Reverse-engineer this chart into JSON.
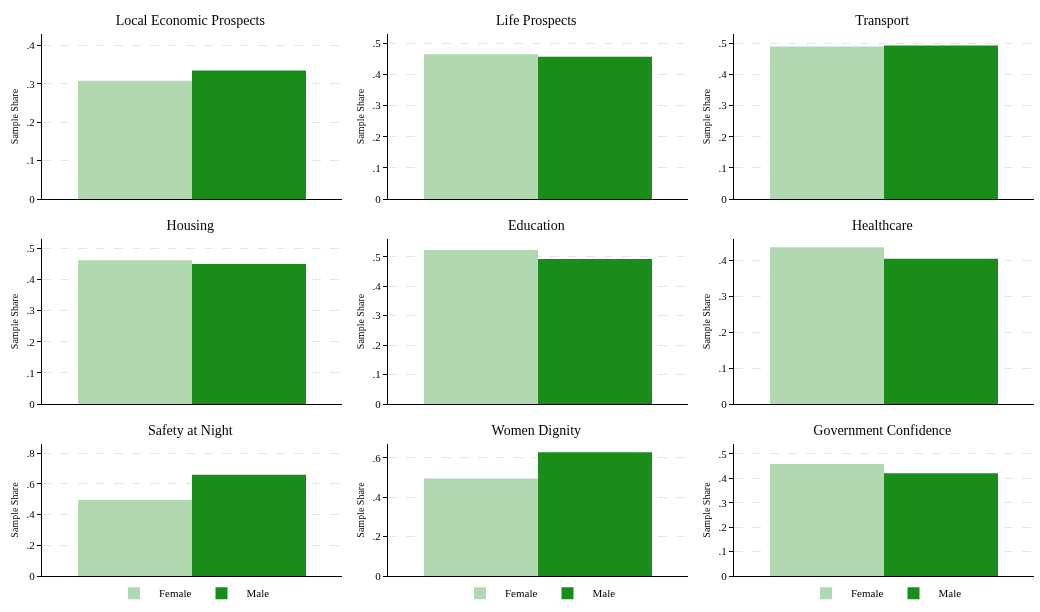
{
  "chart_data": [
    {
      "type": "bar",
      "title": "Local Economic Prospects",
      "ylabel": "Sample Share",
      "categories": [
        null
      ],
      "series": [
        {
          "color": "#b2d8b2",
          "values": [
            0.308
          ]
        },
        {
          "color": "#1a8c1a",
          "values": [
            0.335
          ]
        }
      ],
      "ylim": [
        0,
        0.43
      ],
      "yticks": [
        {
          "value": 0,
          "label": "0"
        },
        {
          "value": 0.1,
          "label": ".1"
        },
        {
          "value": 0.2,
          "label": ".2"
        },
        {
          "value": 0.3,
          "label": ".3"
        },
        {
          "value": 0.4,
          "label": ".4"
        }
      ],
      "grid": "y",
      "legend": false
    },
    {
      "type": "bar",
      "title": "Life Prospects",
      "ylabel": "Sample Share",
      "categories": [
        null
      ],
      "series": [
        {
          "color": "#b2d8b2",
          "values": [
            0.465
          ]
        },
        {
          "color": "#1a8c1a",
          "values": [
            0.457
          ]
        }
      ],
      "ylim": [
        0,
        0.53
      ],
      "yticks": [
        {
          "value": 0,
          "label": "0"
        },
        {
          "value": 0.1,
          "label": ".1"
        },
        {
          "value": 0.2,
          "label": ".2"
        },
        {
          "value": 0.3,
          "label": ".3"
        },
        {
          "value": 0.4,
          "label": ".4"
        },
        {
          "value": 0.5,
          "label": ".5"
        }
      ],
      "grid": "y",
      "legend": false
    },
    {
      "type": "bar",
      "title": "Transport",
      "ylabel": "Sample Share",
      "categories": [
        null
      ],
      "series": [
        {
          "color": "#b2d8b2",
          "values": [
            0.49
          ]
        },
        {
          "color": "#1a8c1a",
          "values": [
            0.493
          ]
        }
      ],
      "ylim": [
        0,
        0.53
      ],
      "yticks": [
        {
          "value": 0,
          "label": "0"
        },
        {
          "value": 0.1,
          "label": ".1"
        },
        {
          "value": 0.2,
          "label": ".2"
        },
        {
          "value": 0.3,
          "label": ".3"
        },
        {
          "value": 0.4,
          "label": ".4"
        },
        {
          "value": 0.5,
          "label": ".5"
        }
      ],
      "grid": "y",
      "legend": false
    },
    {
      "type": "bar",
      "title": "Housing",
      "ylabel": "Sample Share",
      "categories": [
        null
      ],
      "series": [
        {
          "color": "#b2d8b2",
          "values": [
            0.462
          ]
        },
        {
          "color": "#1a8c1a",
          "values": [
            0.45
          ]
        }
      ],
      "ylim": [
        0,
        0.53
      ],
      "yticks": [
        {
          "value": 0,
          "label": "0"
        },
        {
          "value": 0.1,
          "label": ".1"
        },
        {
          "value": 0.2,
          "label": ".2"
        },
        {
          "value": 0.3,
          "label": ".3"
        },
        {
          "value": 0.4,
          "label": ".4"
        },
        {
          "value": 0.5,
          "label": ".5"
        }
      ],
      "grid": "y",
      "legend": false
    },
    {
      "type": "bar",
      "title": "Education",
      "ylabel": "Sample Share",
      "categories": [
        null
      ],
      "series": [
        {
          "color": "#b2d8b2",
          "values": [
            0.523
          ]
        },
        {
          "color": "#1a8c1a",
          "values": [
            0.492
          ]
        }
      ],
      "ylim": [
        0,
        0.56
      ],
      "yticks": [
        {
          "value": 0,
          "label": "0"
        },
        {
          "value": 0.1,
          "label": ".1"
        },
        {
          "value": 0.2,
          "label": ".2"
        },
        {
          "value": 0.3,
          "label": ".3"
        },
        {
          "value": 0.4,
          "label": ".4"
        },
        {
          "value": 0.5,
          "label": ".5"
        }
      ],
      "grid": "y",
      "legend": false
    },
    {
      "type": "bar",
      "title": "Healthcare",
      "ylabel": "Sample Share",
      "categories": [
        null
      ],
      "series": [
        {
          "color": "#b2d8b2",
          "values": [
            0.437
          ]
        },
        {
          "color": "#1a8c1a",
          "values": [
            0.405
          ]
        }
      ],
      "ylim": [
        0,
        0.46
      ],
      "yticks": [
        {
          "value": 0,
          "label": "0"
        },
        {
          "value": 0.1,
          "label": ".1"
        },
        {
          "value": 0.2,
          "label": ".2"
        },
        {
          "value": 0.3,
          "label": ".3"
        },
        {
          "value": 0.4,
          "label": ".4"
        }
      ],
      "grid": "y",
      "legend": false
    },
    {
      "type": "bar",
      "title": "Safety at Night",
      "ylabel": "Sample Share",
      "categories": [
        null
      ],
      "series": [
        {
          "name": "Female",
          "color": "#b2d8b2",
          "values": [
            0.495
          ]
        },
        {
          "name": "Male",
          "color": "#1a8c1a",
          "values": [
            0.66
          ]
        }
      ],
      "ylim": [
        0,
        0.86
      ],
      "yticks": [
        {
          "value": 0,
          "label": "0"
        },
        {
          "value": 0.2,
          "label": ".2"
        },
        {
          "value": 0.4,
          "label": ".4"
        },
        {
          "value": 0.6,
          "label": ".6"
        },
        {
          "value": 0.8,
          "label": ".8"
        }
      ],
      "grid": "y",
      "legend": "bottom"
    },
    {
      "type": "bar",
      "title": "Women Dignity",
      "ylabel": "Sample Share",
      "categories": [
        null
      ],
      "series": [
        {
          "name": "Female",
          "color": "#b2d8b2",
          "values": [
            0.495
          ]
        },
        {
          "name": "Male",
          "color": "#1a8c1a",
          "values": [
            0.628
          ]
        }
      ],
      "ylim": [
        0,
        0.67
      ],
      "yticks": [
        {
          "value": 0,
          "label": "0"
        },
        {
          "value": 0.2,
          "label": ".2"
        },
        {
          "value": 0.4,
          "label": ".4"
        },
        {
          "value": 0.6,
          "label": ".6"
        }
      ],
      "grid": "y",
      "legend": "bottom"
    },
    {
      "type": "bar",
      "title": "Government Confidence",
      "ylabel": "Sample Share",
      "categories": [
        null
      ],
      "series": [
        {
          "name": "Female",
          "color": "#b2d8b2",
          "values": [
            0.458
          ]
        },
        {
          "name": "Male",
          "color": "#1a8c1a",
          "values": [
            0.42
          ]
        }
      ],
      "ylim": [
        0,
        0.54
      ],
      "yticks": [
        {
          "value": 0,
          "label": "0"
        },
        {
          "value": 0.1,
          "label": ".1"
        },
        {
          "value": 0.2,
          "label": ".2"
        },
        {
          "value": 0.3,
          "label": ".3"
        },
        {
          "value": 0.4,
          "label": ".4"
        },
        {
          "value": 0.5,
          "label": ".5"
        }
      ],
      "grid": "y",
      "legend": "bottom"
    }
  ]
}
